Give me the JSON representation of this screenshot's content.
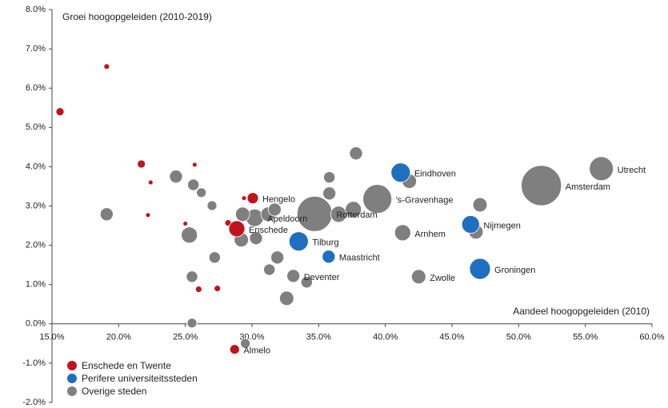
{
  "chart_data": {
    "type": "scatter",
    "ylabel": "Groei hoogopgeleiden (2010-2019)",
    "xlabel": "Aandeel hoogopgeleiden (2010)",
    "xlim": [
      15,
      60
    ],
    "xticks": [
      {
        "value": 15,
        "label": "15.0%"
      },
      {
        "value": 20,
        "label": "20.0%"
      },
      {
        "value": 25,
        "label": "25.0%"
      },
      {
        "value": 30,
        "label": "30.0%"
      },
      {
        "value": 35,
        "label": "35.0%"
      },
      {
        "value": 40,
        "label": "40.0%"
      },
      {
        "value": 45,
        "label": "45.0%"
      },
      {
        "value": 50,
        "label": "50.0%"
      },
      {
        "value": 55,
        "label": "55.0%"
      },
      {
        "value": 60,
        "label": "60.0%"
      }
    ],
    "ylim": [
      -2,
      8
    ],
    "yticks": [
      {
        "value": -2,
        "label": "-2.0%"
      },
      {
        "value": -1,
        "label": "-1.0%"
      },
      {
        "value": 0,
        "label": "0.0%"
      },
      {
        "value": 1,
        "label": "1.0%"
      },
      {
        "value": 2,
        "label": "2.0%"
      },
      {
        "value": 3,
        "label": "3.0%"
      },
      {
        "value": 4,
        "label": "4.0%"
      },
      {
        "value": 5,
        "label": "5.0%"
      },
      {
        "value": 6,
        "label": "6.0%"
      },
      {
        "value": 7,
        "label": "7.0%"
      },
      {
        "value": 8,
        "label": "8.0%"
      }
    ],
    "grid": false,
    "legend": "bottom-left",
    "series": [
      {
        "name": "Overige steden",
        "color": "#7f7f7f",
        "x": [
          34.7,
          51.7,
          39.4,
          56.2,
          30.2,
          41.3,
          33.1,
          42.5,
          19.1,
          24.3,
          25.6,
          26.2,
          27.0,
          25.3,
          27.2,
          25.5,
          25.5,
          29.3,
          29.2,
          30.3,
          31.2,
          31.7,
          31.9,
          31.3,
          32.6,
          34.1,
          35.8,
          36.5,
          37.6,
          35.8,
          37.8,
          41.8,
          47.1,
          46.8,
          29.5
        ],
        "values": [
          2.8,
          3.52,
          3.18,
          3.95,
          2.7,
          2.32,
          1.22,
          1.2,
          2.79,
          3.75,
          3.54,
          3.34,
          3.01,
          2.26,
          1.69,
          1.2,
          0.02,
          2.79,
          2.14,
          2.18,
          2.79,
          2.91,
          1.69,
          1.38,
          0.65,
          1.06,
          3.32,
          2.79,
          2.91,
          3.73,
          4.34,
          3.63,
          3.03,
          2.34,
          -0.5
        ],
        "sizes": [
          670,
          870,
          450,
          310,
          165,
          140,
          90,
          110,
          90,
          90,
          70,
          50,
          50,
          140,
          70,
          70,
          50,
          110,
          110,
          90,
          110,
          90,
          90,
          70,
          110,
          70,
          90,
          140,
          140,
          70,
          90,
          110,
          110,
          110,
          50
        ],
        "labels": [
          "Rotterdam",
          "Amsterdam",
          "'s-Gravenhage",
          "Utrecht",
          "Apeldoorn",
          "Arnhem",
          "Deventer",
          "Zwolle",
          null,
          null,
          null,
          null,
          null,
          null,
          null,
          null,
          null,
          null,
          null,
          null,
          null,
          null,
          null,
          null,
          null,
          null,
          null,
          null,
          null,
          null,
          null,
          null,
          null,
          null,
          null
        ]
      },
      {
        "name": "Perifere universiteitssteden",
        "color": "#1f6fbf",
        "x": [
          41.15,
          33.5,
          35.75,
          46.4,
          47.1
        ],
        "values": [
          3.85,
          2.1,
          1.71,
          2.53,
          1.4
        ],
        "sizes": [
          200,
          200,
          90,
          170,
          235
        ],
        "labels": [
          "Eindhoven",
          "Tilburg",
          "Maastricht",
          "Nijmegen",
          "Groningen"
        ]
      },
      {
        "name": "Enschede en Twente",
        "color": "#c0141c",
        "x": [
          15.6,
          19.1,
          21.7,
          22.4,
          25.7,
          22.2,
          25.0,
          26.0,
          27.4,
          28.2,
          30.06,
          29.4,
          28.86,
          28.7
        ],
        "values": [
          5.4,
          6.55,
          4.07,
          3.6,
          4.05,
          2.77,
          2.55,
          0.88,
          0.9,
          2.57,
          3.2,
          3.2,
          2.42,
          -0.65
        ],
        "sizes": [
          35,
          17,
          35,
          12,
          12,
          12,
          12,
          22,
          22,
          22,
          68,
          12,
          140,
          50
        ],
        "labels": [
          null,
          null,
          null,
          null,
          null,
          null,
          null,
          null,
          null,
          null,
          "Hengelo",
          null,
          "Enschede",
          "Almelo"
        ]
      }
    ]
  }
}
